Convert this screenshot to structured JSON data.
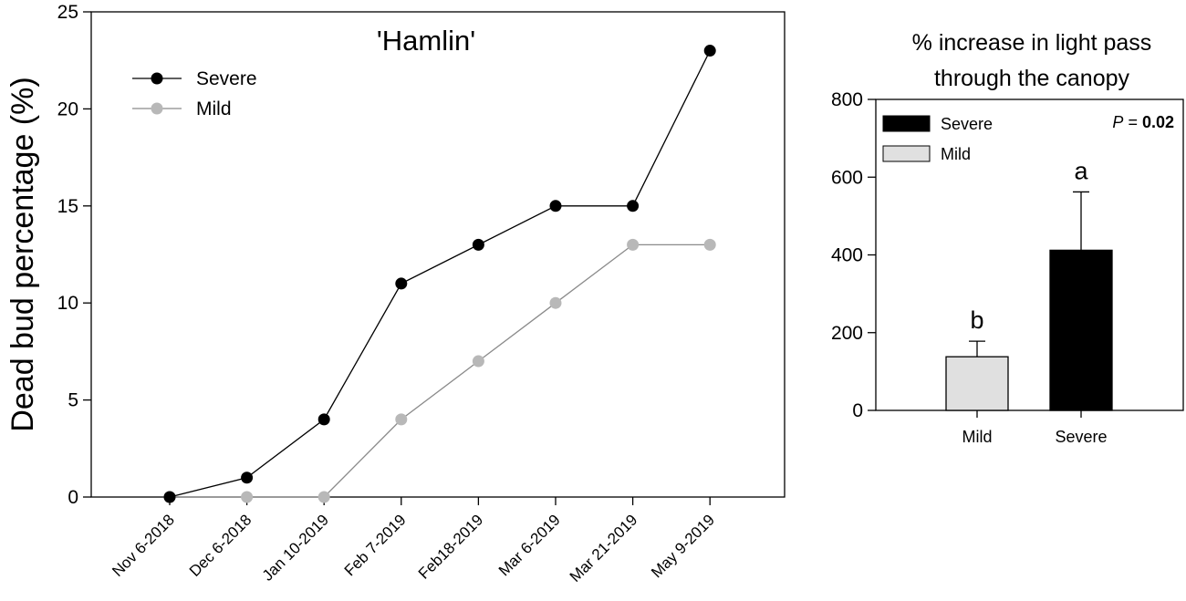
{
  "chart_data": [
    {
      "type": "line",
      "title": "'Hamlin'",
      "xlabel": "",
      "ylabel": "Dead bud percentage (%)",
      "categories": [
        "Nov 6-2018",
        "Dec 6-2018",
        "Jan 10-2019",
        "Feb 7-2019",
        "Feb18-2019",
        "Mar 6-2019",
        "Mar 21-2019",
        "May 9-2019"
      ],
      "ylim": [
        0,
        25
      ],
      "yticks": [
        0,
        5,
        10,
        15,
        20,
        25
      ],
      "grid": false,
      "legend_position": "top-left",
      "series": [
        {
          "name": "Severe",
          "color": "#000000",
          "values": [
            0,
            1,
            4,
            11,
            13,
            15,
            15,
            23
          ]
        },
        {
          "name": "Mild",
          "color": "#b8b8b8",
          "values": [
            0,
            0,
            0,
            4,
            7,
            10,
            13,
            13
          ]
        }
      ]
    },
    {
      "type": "bar",
      "title": "% increase in light pass through the canopy",
      "title_lines": [
        "% increase in light pass",
        "through the canopy"
      ],
      "xlabel": "",
      "ylabel": "",
      "categories": [
        "Mild",
        "Severe"
      ],
      "values": [
        138,
        412
      ],
      "errors": [
        40,
        150
      ],
      "colors": [
        "#e0e0e0",
        "#000000"
      ],
      "significance_letters": [
        "b",
        "a"
      ],
      "ylim": [
        0,
        800
      ],
      "yticks": [
        0,
        200,
        400,
        600,
        800
      ],
      "grid": false,
      "legend_position": "top-left",
      "legend": [
        {
          "name": "Severe",
          "color": "#000000"
        },
        {
          "name": "Mild",
          "color": "#e0e0e0"
        }
      ],
      "annotation": {
        "label": "P",
        "separator": " = ",
        "value": "0.02"
      }
    }
  ]
}
